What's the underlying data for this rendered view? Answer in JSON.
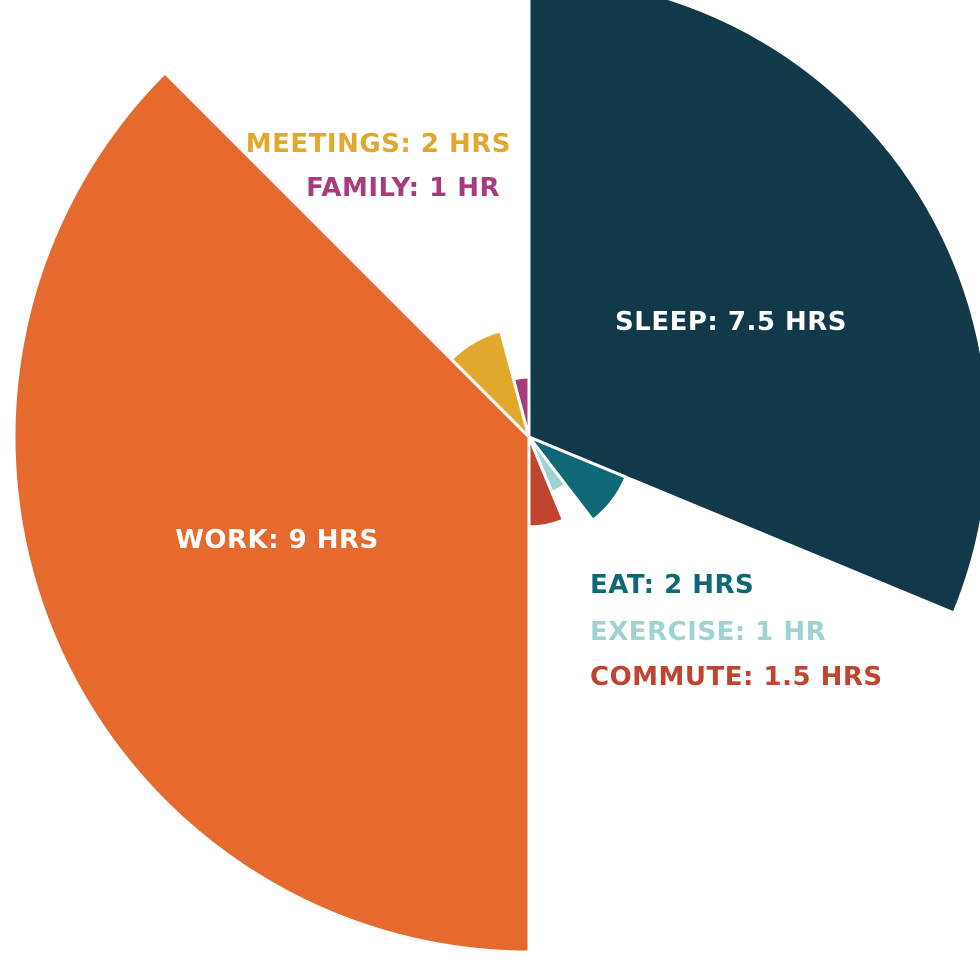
{
  "chart_data": {
    "type": "pie",
    "subtype": "polar-area",
    "unit": "hrs",
    "slices": [
      {
        "label": "SLEEP: 7.5 HRS",
        "category": "SLEEP",
        "value": 7.5,
        "color": "#11394a"
      },
      {
        "label": "EAT: 2 HRS",
        "category": "EAT",
        "value": 2,
        "color": "#0f6876"
      },
      {
        "label": "EXERCISE: 1 HR",
        "category": "EXERCISE",
        "value": 1,
        "color": "#9fd3d2"
      },
      {
        "label": "COMMUTE: 1.5 HRS",
        "category": "COMMUTE",
        "value": 1.5,
        "color": "#c0442e"
      },
      {
        "label": "WORK: 9 HRS",
        "category": "WORK",
        "value": 9,
        "color": "#e66a2e"
      },
      {
        "label": "MEETINGS: 2 HRS",
        "category": "MEETINGS",
        "value": 2,
        "color": "#e2a72d"
      },
      {
        "label": "FAMILY: 1 HR",
        "category": "FAMILY",
        "value": 1,
        "color": "#a83b7c"
      }
    ],
    "title": "",
    "legend": "none"
  }
}
